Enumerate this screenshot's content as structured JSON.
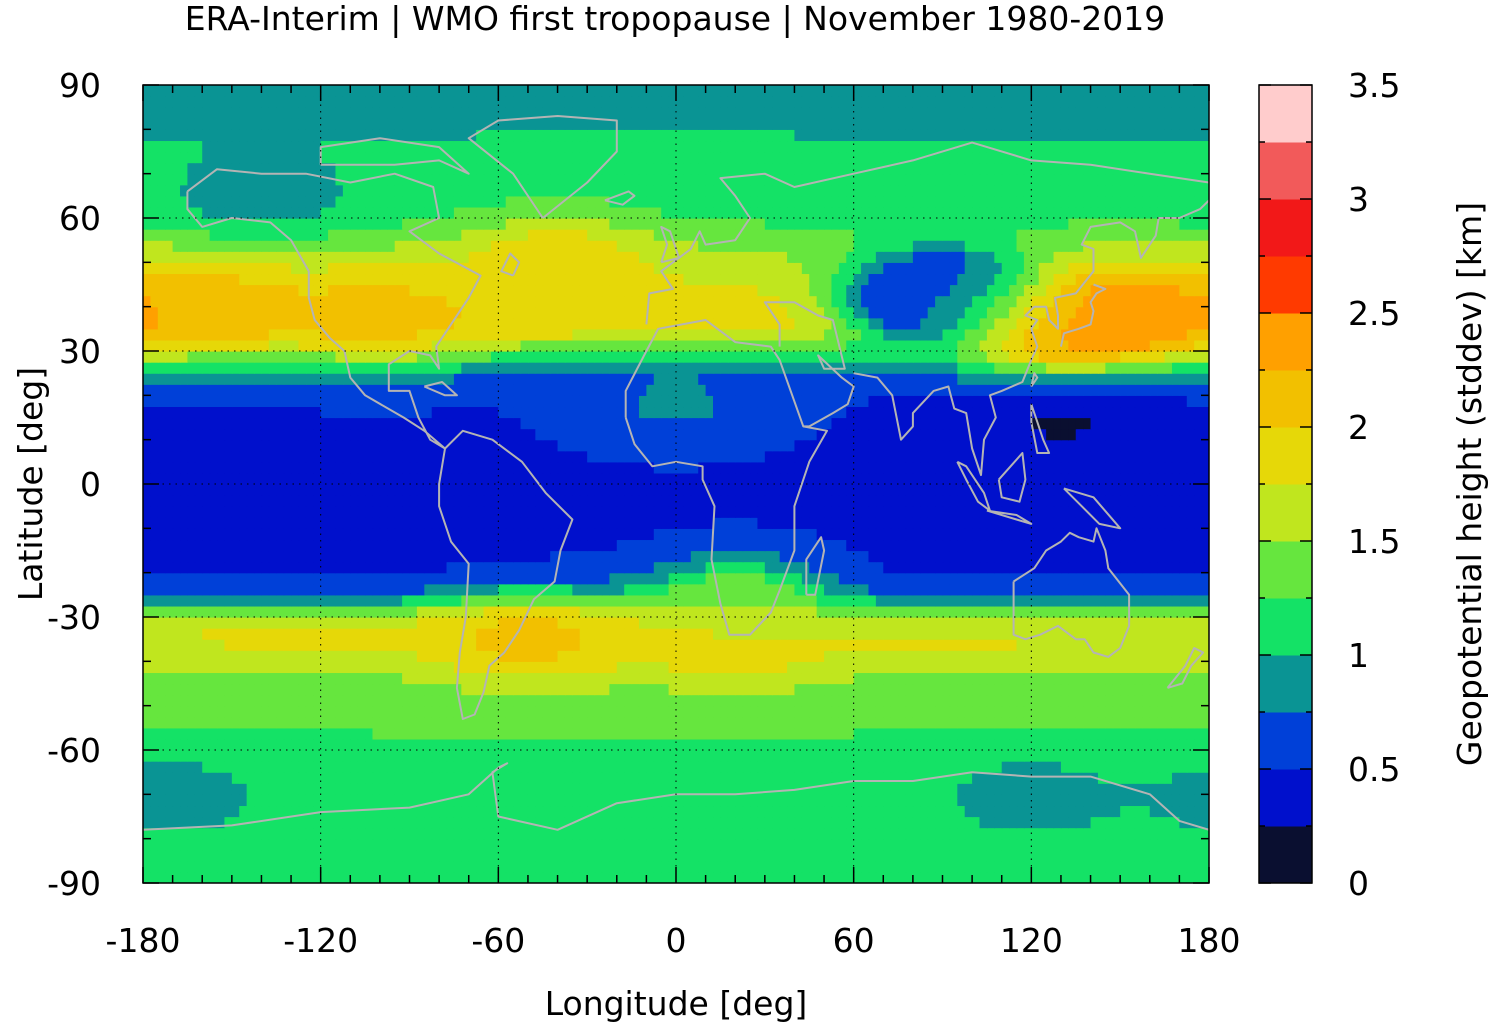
{
  "chart_data": {
    "type": "heatmap",
    "title": "ERA-Interim | WMO first tropopause | November 1980-2019",
    "xlabel": "Longitude [deg]",
    "ylabel": "Latitude [deg]",
    "colorbar_label": "Geopotential height (stddev) [km]",
    "xlim": [
      -180,
      180
    ],
    "ylim": [
      -90,
      90
    ],
    "x_ticks": [
      -180,
      -120,
      -60,
      0,
      60,
      120,
      180
    ],
    "x_tick_labels": [
      "-180",
      "-120",
      "-60",
      "0",
      "60",
      "120",
      "180"
    ],
    "y_ticks": [
      90,
      60,
      30,
      0,
      -30,
      -60,
      -90
    ],
    "y_tick_labels": [
      "90",
      "60",
      "30",
      "0",
      "-30",
      "-60",
      "-90"
    ],
    "colorbar_ticks": [
      0,
      0.5,
      1,
      1.5,
      2,
      2.5,
      3,
      3.5
    ],
    "colorbar_tick_labels": [
      "0",
      "0.5",
      "1",
      "1.5",
      "2",
      "2.5",
      "3",
      "3.5"
    ],
    "colorbar_range": [
      0,
      3.5
    ],
    "levels": [
      0,
      0.25,
      0.5,
      0.75,
      1.0,
      1.25,
      1.5,
      1.75,
      2.0,
      2.25,
      2.5,
      2.75,
      3.0,
      3.25,
      3.5
    ],
    "level_colors": [
      "#0a0f30",
      "#0010cc",
      "#0040d8",
      "#0a9494",
      "#14e266",
      "#66e63e",
      "#c0e61e",
      "#e6d808",
      "#f2c000",
      "#ffa000",
      "#ff3a00",
      "#f21818",
      "#f25a5a",
      "#ffcccc"
    ],
    "grid": true,
    "coastlines": true,
    "coastline_color": "#b4b4b4",
    "zonal_mean_stddev": [
      {
        "lat": 90,
        "value": 0.85
      },
      {
        "lat": 75,
        "value": 1.05
      },
      {
        "lat": 60,
        "value": 1.2
      },
      {
        "lat": 50,
        "value": 1.6
      },
      {
        "lat": 40,
        "value": 1.9
      },
      {
        "lat": 35,
        "value": 1.9
      },
      {
        "lat": 30,
        "value": 1.3
      },
      {
        "lat": 25,
        "value": 0.7
      },
      {
        "lat": 20,
        "value": 0.5
      },
      {
        "lat": 0,
        "value": 0.45
      },
      {
        "lat": -20,
        "value": 0.45
      },
      {
        "lat": -25,
        "value": 0.7
      },
      {
        "lat": -30,
        "value": 1.6
      },
      {
        "lat": -35,
        "value": 1.8
      },
      {
        "lat": -45,
        "value": 1.4
      },
      {
        "lat": -60,
        "value": 1.2
      },
      {
        "lat": -70,
        "value": 1.1
      },
      {
        "lat": -90,
        "value": 1.1
      }
    ],
    "regional_features": [
      {
        "lon": -160,
        "lat": 40,
        "value": 2.2
      },
      {
        "lon": -100,
        "lat": 38,
        "value": 2.1
      },
      {
        "lon": -40,
        "lat": 50,
        "value": 2.0
      },
      {
        "lon": 90,
        "lat": 45,
        "value": 0.7
      },
      {
        "lon": 90,
        "lat": 40,
        "value": 0.4
      },
      {
        "lon": 125,
        "lat": 36,
        "value": 2.6
      },
      {
        "lon": 150,
        "lat": 38,
        "value": 2.35
      },
      {
        "lon": 130,
        "lat": 15,
        "value": 0.2
      },
      {
        "lon": -50,
        "lat": -35,
        "value": 2.1
      },
      {
        "lon": 20,
        "lat": -35,
        "value": 2.0
      },
      {
        "lon": 120,
        "lat": -70,
        "value": 0.9
      },
      {
        "lon": -140,
        "lat": 65,
        "value": 0.85
      },
      {
        "lon": -170,
        "lat": -70,
        "value": 0.9
      },
      {
        "lon": 0,
        "lat": 18,
        "value": 0.8
      },
      {
        "lon": 20,
        "lat": -25,
        "value": 1.2
      }
    ]
  }
}
